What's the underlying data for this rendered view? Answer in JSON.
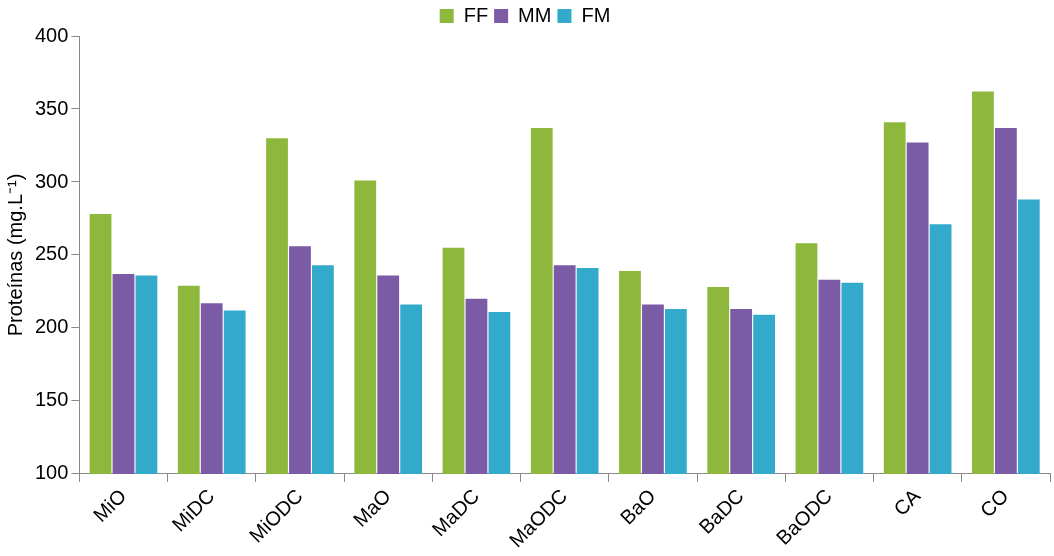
{
  "chart_data": {
    "type": "bar",
    "ylabel": "Proteínas (mg.L⁻¹)",
    "categories": [
      "MiO",
      "MiDC",
      "MiODC",
      "MaO",
      "MaDC",
      "MaODC",
      "BaO",
      "BaDC",
      "BaODC",
      "CA",
      "CO"
    ],
    "series": [
      {
        "name": "FF",
        "color": "#8db83c",
        "values": [
          278,
          229,
          330,
          301,
          255,
          337,
          239,
          228,
          258,
          341,
          362
        ]
      },
      {
        "name": "MM",
        "color": "#7b5aa6",
        "values": [
          237,
          217,
          256,
          236,
          220,
          243,
          216,
          213,
          233,
          327,
          337
        ]
      },
      {
        "name": "FM",
        "color": "#33aacb",
        "values": [
          236,
          212,
          243,
          216,
          211,
          241,
          213,
          209,
          231,
          271,
          288
        ]
      }
    ],
    "ylim": [
      100,
      400
    ],
    "yticks": [
      100,
      150,
      200,
      250,
      300,
      350,
      400
    ],
    "grid": false,
    "legend": "top"
  }
}
